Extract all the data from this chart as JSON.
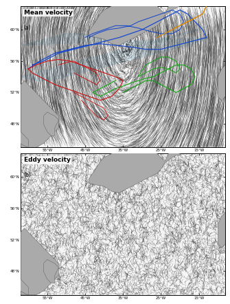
{
  "title_top": "Mean velocity",
  "title_bottom": "Eddy velocity",
  "label_top": "(a)",
  "label_bottom": "(b)",
  "figure_bg": "#ffffff",
  "title_fontsize": 6.5,
  "label_fontsize": 5.5,
  "streamline_color": "#111111",
  "land_color": "#aaaaaa",
  "ocean_bg": "#f5f5f5",
  "lic_alpha_mean": 0.55,
  "lic_alpha_eddy": 0.65,
  "trajectory_colors": [
    "#1144cc",
    "#cc1111",
    "#11aa11",
    "#dd8800"
  ],
  "nac_fill_color": "#bbddee",
  "nac_fill_alpha": 0.4,
  "figsize": [
    3.35,
    4.42
  ],
  "dpi": 100,
  "seed": 42,
  "n_lic_mean": 6000,
  "n_lic_eddy": 8000,
  "lon_min": -62,
  "lon_max": -8,
  "lat_min": 45,
  "lat_max": 63,
  "tick_lons": [
    -55,
    -45,
    -35,
    -25,
    -15
  ],
  "tick_lats": [
    48,
    52,
    56,
    60
  ]
}
